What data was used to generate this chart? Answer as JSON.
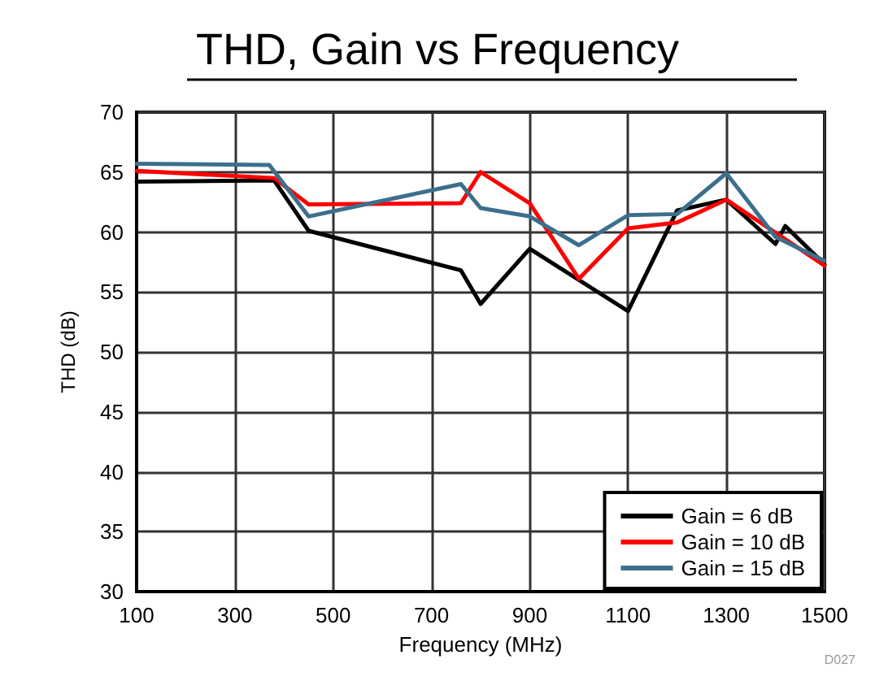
{
  "chart_data": {
    "type": "line",
    "title": "THD, Gain vs Frequency",
    "xlabel": "Frequency (MHz)",
    "ylabel": "THD (dB)",
    "annotations": [
      "D027"
    ],
    "xlim": [
      100,
      1500
    ],
    "xticks": [
      100,
      300,
      500,
      700,
      900,
      1100,
      1300,
      1500
    ],
    "ylim": [
      30,
      70
    ],
    "yticks": [
      30,
      35,
      40,
      45,
      50,
      55,
      60,
      65,
      70
    ],
    "grid": true,
    "legend": "bottom right",
    "line_style": "solid",
    "marker": "none",
    "series": [
      {
        "name": "Gain = 6 dB",
        "color": "#000000",
        "x": [
          100,
          380,
          450,
          760,
          800,
          900,
          1100,
          1200,
          1300,
          1400,
          1420,
          1500
        ],
        "values": [
          64.2,
          64.3,
          60.1,
          56.8,
          54,
          58.6,
          53.4,
          61.8,
          62.7,
          59,
          60.5,
          57.3
        ]
      },
      {
        "name": "Gain = 10 dB",
        "color": "#ff0000",
        "x": [
          100,
          380,
          450,
          760,
          800,
          900,
          1000,
          1100,
          1200,
          1300,
          1500
        ],
        "values": [
          65.1,
          64.5,
          62.3,
          62.4,
          65,
          62.4,
          56.1,
          60.3,
          60.8,
          62.7,
          57.2
        ]
      },
      {
        "name": "Gain = 15 dB",
        "color": "#3d6f8c",
        "x": [
          100,
          370,
          450,
          760,
          800,
          900,
          1000,
          1100,
          1200,
          1300,
          1400,
          1500
        ],
        "values": [
          65.7,
          65.6,
          61.3,
          64,
          62,
          61.3,
          58.9,
          61.4,
          61.5,
          64.9,
          59.6,
          57.6
        ]
      }
    ]
  }
}
